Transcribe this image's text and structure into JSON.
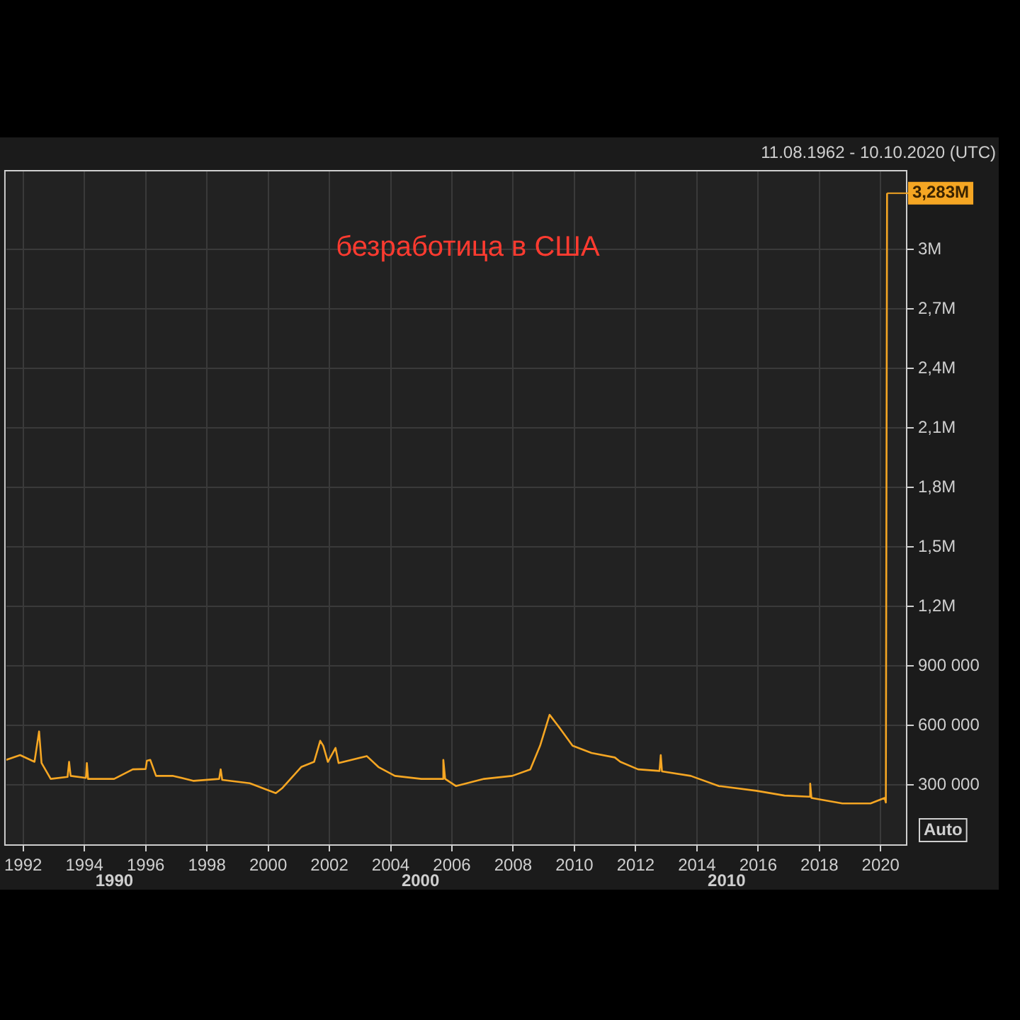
{
  "chart_data": {
    "type": "line",
    "title": "безработица в США",
    "annotations": [
      "11.08.1962 - 10.10.2020 (UTC)",
      "1990",
      "2000",
      "2010",
      "Auto",
      {
        "text": "3,283M",
        "x": 2020.21,
        "y": 3283000
      }
    ],
    "x": [
      1991.45,
      1991.9,
      1992.37,
      1992.52,
      1992.6,
      1992.9,
      1993.45,
      1993.5,
      1993.55,
      1994.05,
      1994.08,
      1994.12,
      1994.97,
      1995.58,
      1996.0,
      1996.04,
      1996.15,
      1996.34,
      1996.9,
      1997.57,
      1998.4,
      1998.45,
      1998.5,
      1999.4,
      2000.25,
      2000.45,
      2001.08,
      2001.5,
      2001.7,
      2001.8,
      2001.95,
      2002.2,
      2002.3,
      2003.22,
      2003.6,
      2004.14,
      2005.0,
      2005.68,
      2005.72,
      2005.78,
      2006.13,
      2007.05,
      2007.97,
      2008.56,
      2008.88,
      2009.19,
      2009.49,
      2009.94,
      2010.56,
      2011.32,
      2011.5,
      2012.08,
      2012.78,
      2012.82,
      2012.86,
      2013.8,
      2014.72,
      2015.94,
      2016.86,
      2017.66,
      2017.7,
      2017.74,
      2018.75,
      2019.67,
      2020.13,
      2020.17,
      2020.21
    ],
    "series": [
      {
        "color": "#f5a623",
        "values": [
          426000,
          450000,
          416000,
          569000,
          410000,
          330000,
          340000,
          416000,
          345000,
          335000,
          410000,
          330000,
          330000,
          378000,
          380000,
          421000,
          426000,
          345000,
          345000,
          320000,
          330000,
          378000,
          325000,
          308000,
          258000,
          282000,
          390000,
          416000,
          522000,
          497000,
          416000,
          486000,
          410000,
          445000,
          390000,
          345000,
          330000,
          330000,
          426000,
          330000,
          294000,
          330000,
          345000,
          378000,
          497000,
          653000,
          593000,
          497000,
          461000,
          438000,
          416000,
          378000,
          370000,
          450000,
          368000,
          345000,
          294000,
          270000,
          246000,
          240000,
          306000,
          234000,
          206000,
          206000,
          234000,
          211000,
          3283000
        ]
      }
    ],
    "xlim": [
      1991.45,
      2020.85
    ],
    "xticks": [
      1992,
      1994,
      1996,
      1998,
      2000,
      2002,
      2004,
      2006,
      2008,
      2010,
      2012,
      2014,
      2016,
      2018,
      2020
    ],
    "ylim": [
      0,
      3400000
    ],
    "yticks": [
      {
        "value": 300000,
        "label": "300 000"
      },
      {
        "value": 600000,
        "label": "600 000"
      },
      {
        "value": 900000,
        "label": "900 000"
      },
      {
        "value": 1200000,
        "label": "1,2M"
      },
      {
        "value": 1500000,
        "label": "1,5M"
      },
      {
        "value": 1800000,
        "label": "1,8M"
      },
      {
        "value": 2100000,
        "label": "2,1M"
      },
      {
        "value": 2400000,
        "label": "2,4M"
      },
      {
        "value": 2700000,
        "label": "2,7M"
      },
      {
        "value": 3000000,
        "label": "3M"
      }
    ],
    "grid": true,
    "legend": false,
    "marker": "none",
    "line_style": "solid"
  }
}
